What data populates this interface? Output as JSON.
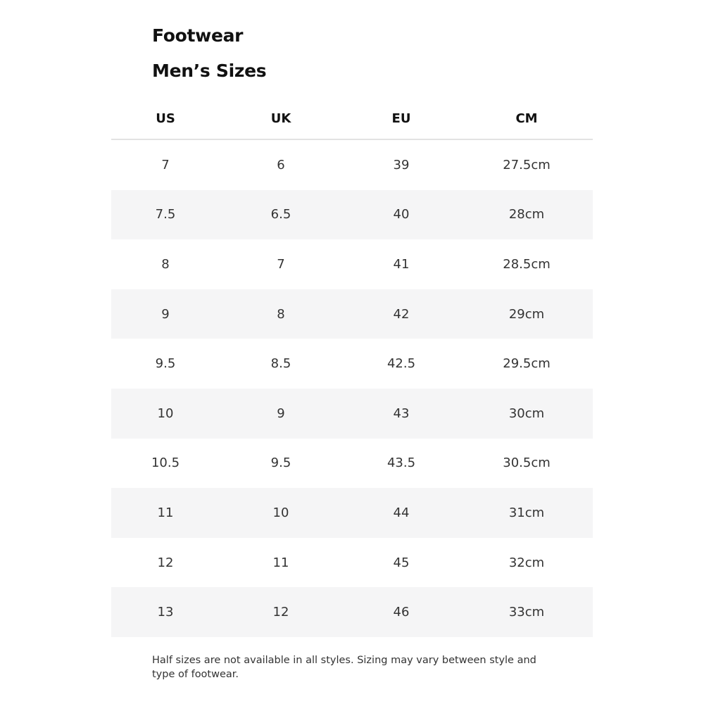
{
  "title": "Footwear",
  "subtitle": "Men’s Sizes",
  "table": {
    "columns": [
      "US",
      "UK",
      "EU",
      "CM"
    ],
    "rows": [
      [
        "7",
        "6",
        "39",
        "27.5cm"
      ],
      [
        "7.5",
        "6.5",
        "40",
        "28cm"
      ],
      [
        "8",
        "7",
        "41",
        "28.5cm"
      ],
      [
        "9",
        "8",
        "42",
        "29cm"
      ],
      [
        "9.5",
        "8.5",
        "42.5",
        "29.5cm"
      ],
      [
        "10",
        "9",
        "43",
        "30cm"
      ],
      [
        "10.5",
        "9.5",
        "43.5",
        "30.5cm"
      ],
      [
        "11",
        "10",
        "44",
        "31cm"
      ],
      [
        "12",
        "11",
        "45",
        "32cm"
      ],
      [
        "13",
        "12",
        "46",
        "33cm"
      ]
    ]
  },
  "note": "Half sizes are not available in all styles. Sizing may vary between style and type of footwear.",
  "colors": {
    "stripe": "#f5f5f6",
    "divider": "#e2e2e2"
  }
}
